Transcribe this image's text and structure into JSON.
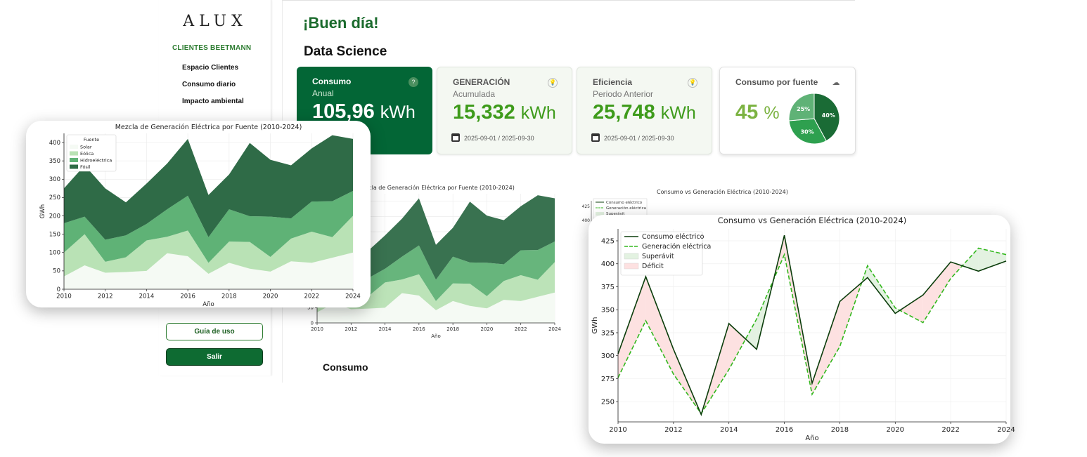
{
  "sidebar": {
    "logo": "ALUX",
    "client": "CLIENTES BEETMANN",
    "items": [
      {
        "label": "Espacio Clientes"
      },
      {
        "label": "Consumo diario"
      },
      {
        "label": "Impacto ambiental"
      }
    ],
    "guide_label": "Guía de uso",
    "exit_label": "Salir"
  },
  "header": {
    "greeting": "¡Buen día!",
    "section": "Data Science",
    "subsection": "Consumo"
  },
  "cards": {
    "consumo": {
      "title": "Consumo",
      "subtitle": "Anual",
      "value": "105,96",
      "unit": "kWh",
      "icon": "info-icon"
    },
    "generacion": {
      "title": "GENERACIÓN",
      "subtitle": "Acumulada",
      "value": "15,332",
      "unit": "kWh",
      "date": "2025-09-01 / 2025-09-30",
      "icon": "lightbulb-icon"
    },
    "eficiencia": {
      "title": "Eficiencia",
      "subtitle": "Periodo Anterior",
      "value": "25,748",
      "unit": "kWh",
      "date": "2025-09-01 / 2025-09-30",
      "icon": "lightbulb-icon"
    },
    "fuente": {
      "title": "Consumo por fuente",
      "value": "45",
      "unit": "%",
      "icon": "cloud-icon"
    }
  },
  "colors": {
    "primary_dark": "#036636",
    "accent_green": "#3e9b1b",
    "fosil": "#2f6b47",
    "hidro": "#5fb276",
    "eolica": "#b9e2b5",
    "solar": "#f5faf4",
    "consumo_line": "#0b3d0b",
    "generacion_line": "#33b81e",
    "superavit": "#e3f2e1",
    "deficit": "#fde1e1"
  },
  "chart_data": [
    {
      "type": "pie",
      "labels": [
        "40%",
        "30%",
        "25%"
      ],
      "values": [
        40,
        30,
        25
      ],
      "colors": [
        "#1a6b35",
        "#2ea04f",
        "#5fb276"
      ]
    },
    {
      "type": "area",
      "title": "Mezcla de Generación Eléctrica por Fuente (2010-2024)",
      "xlabel": "Año",
      "ylabel": "GWh",
      "x": [
        2010,
        2011,
        2012,
        2013,
        2014,
        2015,
        2016,
        2017,
        2018,
        2019,
        2020,
        2021,
        2022,
        2023,
        2024
      ],
      "xticks": [
        2010,
        2012,
        2014,
        2016,
        2018,
        2020,
        2022,
        2024
      ],
      "yticks": [
        0,
        50,
        100,
        150,
        200,
        250,
        300,
        350,
        400
      ],
      "ylim": [
        0,
        425
      ],
      "stacked": true,
      "legend_title": "Fuente",
      "legend_position": "top-left",
      "series": [
        {
          "name": "Solar",
          "values": [
            35,
            65,
            45,
            47,
            50,
            98,
            90,
            42,
            72,
            56,
            48,
            76,
            72,
            86,
            100
          ]
        },
        {
          "name": "Eólica",
          "values": [
            65,
            85,
            30,
            40,
            83,
            45,
            70,
            30,
            58,
            73,
            40,
            62,
            85,
            56,
            100
          ]
        },
        {
          "name": "Hidroeléctrica",
          "values": [
            80,
            48,
            60,
            60,
            45,
            75,
            95,
            70,
            88,
            70,
            110,
            55,
            82,
            98,
            68
          ]
        },
        {
          "name": "Fósil",
          "values": [
            95,
            140,
            140,
            90,
            110,
            125,
            155,
            115,
            95,
            200,
            155,
            145,
            145,
            180,
            142
          ]
        }
      ]
    },
    {
      "type": "line",
      "title": "Consumo vs Generación Eléctrica (2010-2024)",
      "xlabel": "Año",
      "ylabel": "GWh",
      "x": [
        2010,
        2011,
        2012,
        2013,
        2014,
        2015,
        2016,
        2017,
        2018,
        2019,
        2020,
        2021,
        2022,
        2023,
        2024
      ],
      "xticks": [
        2010,
        2012,
        2014,
        2016,
        2018,
        2020,
        2022,
        2024
      ],
      "yticks": [
        250,
        275,
        300,
        325,
        350,
        375,
        400,
        425
      ],
      "ylim": [
        228,
        438
      ],
      "legend_position": "top-left",
      "series": [
        {
          "name": "Consumo eléctrico",
          "style": "solid",
          "values": [
            302,
            386,
            307,
            236,
            335,
            307,
            431,
            270,
            359,
            385,
            346,
            366,
            402,
            392,
            403
          ]
        },
        {
          "name": "Generación eléctrica",
          "style": "dashed",
          "values": [
            276,
            338,
            280,
            237,
            285,
            340,
            410,
            258,
            310,
            398,
            352,
            336,
            384,
            417,
            410
          ]
        }
      ],
      "fill_legend": [
        "Superávit",
        "Déficit"
      ]
    }
  ]
}
